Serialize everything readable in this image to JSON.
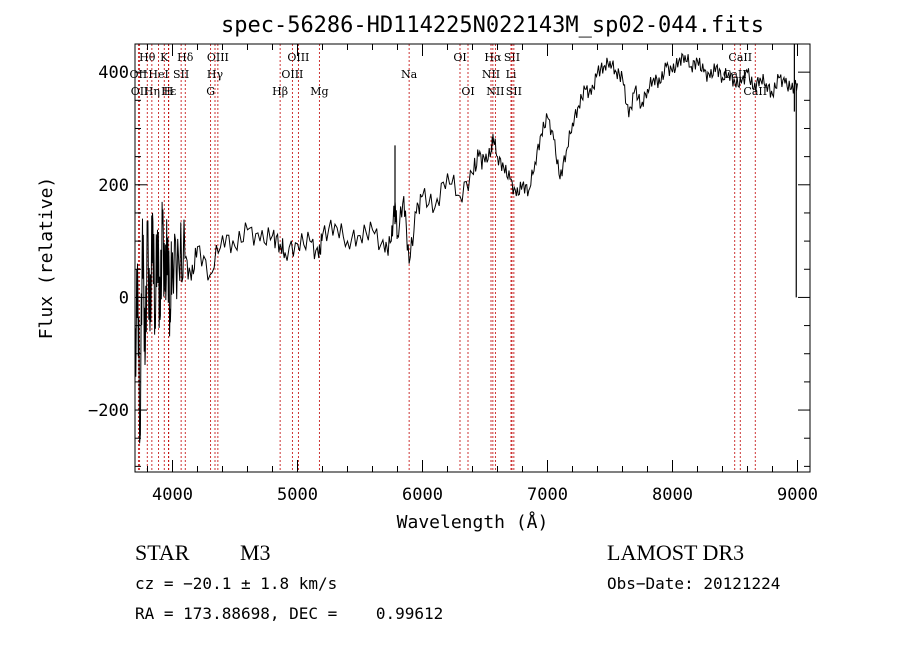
{
  "chart_data": {
    "type": "line",
    "title": "spec-56286-HD114225N022143M_sp02-044.fits",
    "xlabel": "Wavelength (Å)",
    "ylabel": "Flux (relative)",
    "xlim": [
      3700,
      9100
    ],
    "ylim": [
      -310,
      450
    ],
    "x_ticks": [
      4000,
      5000,
      6000,
      7000,
      8000,
      9000
    ],
    "y_ticks": [
      -200,
      0,
      200,
      400
    ],
    "series": [
      {
        "name": "flux",
        "x": [
          3700,
          3720,
          3740,
          3760,
          3780,
          3800,
          3820,
          3840,
          3860,
          3880,
          3900,
          3920,
          3940,
          3960,
          3980,
          4000,
          4050,
          4100,
          4150,
          4200,
          4300,
          4400,
          4500,
          4600,
          4700,
          4800,
          4861,
          4900,
          5000,
          5100,
          5170,
          5200,
          5300,
          5400,
          5500,
          5600,
          5700,
          5750,
          5780,
          5800,
          5850,
          5893,
          5950,
          6000,
          6100,
          6200,
          6300,
          6400,
          6450,
          6500,
          6550,
          6563,
          6600,
          6650,
          6700,
          6750,
          6800,
          6850,
          6900,
          6950,
          7000,
          7050,
          7100,
          7150,
          7200,
          7250,
          7300,
          7350,
          7400,
          7450,
          7500,
          7550,
          7600,
          7650,
          7700,
          7750,
          7800,
          7850,
          7900,
          7950,
          8000,
          8050,
          8100,
          8150,
          8200,
          8250,
          8300,
          8350,
          8400,
          8450,
          8500,
          8550,
          8600,
          8650,
          8700,
          8750,
          8800,
          8850,
          8900,
          8950,
          9000
        ],
        "y": [
          -150,
          60,
          -250,
          140,
          -120,
          110,
          -60,
          150,
          -30,
          120,
          -40,
          130,
          10,
          100,
          -20,
          80,
          60,
          70,
          30,
          90,
          40,
          110,
          90,
          120,
          100,
          110,
          95,
          80,
          95,
          100,
          70,
          110,
          130,
          100,
          110,
          120,
          80,
          100,
          170,
          110,
          180,
          60,
          150,
          180,
          160,
          220,
          180,
          220,
          250,
          240,
          260,
          290,
          250,
          230,
          210,
          180,
          200,
          190,
          240,
          290,
          320,
          280,
          210,
          260,
          310,
          340,
          370,
          360,
          400,
          410,
          420,
          400,
          390,
          320,
          370,
          340,
          370,
          390,
          380,
          410,
          400,
          420,
          430,
          410,
          420,
          400,
          390,
          410,
          390,
          400,
          380,
          380,
          400,
          370,
          390,
          380,
          360,
          390,
          380,
          370,
          380
        ]
      }
    ],
    "spike": {
      "x": 5780,
      "y": 270
    },
    "lines": [
      {
        "label": "Hθ",
        "x": 3798,
        "row": 1
      },
      {
        "label": "K",
        "x": 3934,
        "row": 1
      },
      {
        "label": "Hδ",
        "x": 4102,
        "row": 1
      },
      {
        "label": "OIII",
        "x": 4363,
        "row": 1
      },
      {
        "label": "OIII",
        "x": 5007,
        "row": 1
      },
      {
        "label": "OI",
        "x": 6300,
        "row": 1
      },
      {
        "label": "Hα",
        "x": 6563,
        "row": 1
      },
      {
        "label": "SII",
        "x": 6716,
        "row": 1
      },
      {
        "label": "CaII",
        "x": 8542,
        "row": 1
      },
      {
        "label": "OII",
        "x": 3727,
        "row": 2
      },
      {
        "label": "HeI",
        "x": 3889,
        "row": 2
      },
      {
        "label": "SII",
        "x": 4069,
        "row": 2
      },
      {
        "label": "Hγ",
        "x": 4340,
        "row": 2
      },
      {
        "label": "OIII",
        "x": 4959,
        "row": 2
      },
      {
        "label": "Na",
        "x": 5893,
        "row": 2
      },
      {
        "label": "NII",
        "x": 6548,
        "row": 2
      },
      {
        "label": "Li",
        "x": 6708,
        "row": 2
      },
      {
        "label": "CaII",
        "x": 8498,
        "row": 2
      },
      {
        "label": "OII",
        "x": 3737,
        "row": 3
      },
      {
        "label": "Hε",
        "x": 3970,
        "row": 3
      },
      {
        "label": "Hη",
        "x": 3835,
        "row": 3
      },
      {
        "label": "H",
        "x": 3968,
        "row": 3
      },
      {
        "label": "G",
        "x": 4305,
        "row": 3
      },
      {
        "label": "Hβ",
        "x": 4861,
        "row": 3
      },
      {
        "label": "Mg",
        "x": 5175,
        "row": 3
      },
      {
        "label": "OI",
        "x": 6364,
        "row": 3
      },
      {
        "label": "NII",
        "x": 6583,
        "row": 3
      },
      {
        "label": "SII",
        "x": 6731,
        "row": 3
      },
      {
        "label": "CaII",
        "x": 8662,
        "row": 3
      }
    ]
  },
  "info": {
    "object_class": "STAR",
    "subclass": "M3",
    "survey": "LAMOST DR3",
    "cz": "cz = −20.1 ± 1.8 km/s",
    "obs_date": "Obs−Date: 20121224",
    "coords": "RA = 173.88698, DEC =    0.99612"
  }
}
